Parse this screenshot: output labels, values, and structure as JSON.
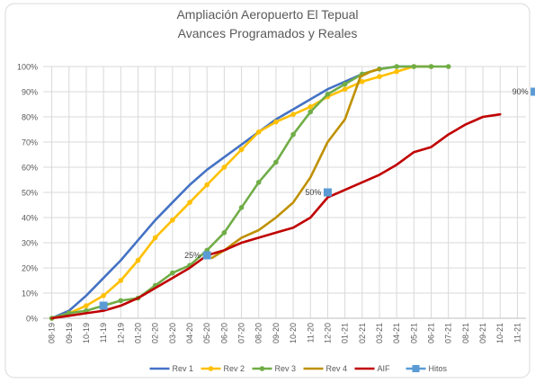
{
  "chart_data": {
    "type": "line",
    "title": "Ampliación Aeropuerto El Tepual",
    "subtitle": "Avances Programados y Reales",
    "xlabel": "",
    "ylabel": "",
    "x_labels": [
      "08-19",
      "09-19",
      "10-19",
      "11-19",
      "12-19",
      "01-20",
      "02-20",
      "03-20",
      "04-20",
      "05-20",
      "06-20",
      "07-20",
      "08-20",
      "09-20",
      "10-20",
      "11-20",
      "12-20",
      "01-21",
      "02-21",
      "03-21",
      "04-21",
      "05-21",
      "06-21",
      "07-21",
      "08-21",
      "09-21",
      "10-21",
      "11-21"
    ],
    "y_ticks": [
      "0%",
      "10%",
      "20%",
      "30%",
      "40%",
      "50%",
      "60%",
      "70%",
      "80%",
      "90%",
      "100%"
    ],
    "ylim": [
      0,
      100
    ],
    "grid": true,
    "legend_position": "bottom",
    "series": [
      {
        "name": "Rev 1",
        "color": "#4472C4",
        "marker": "none",
        "x": [
          0,
          1,
          2,
          3,
          4,
          5,
          6,
          7,
          8,
          9,
          10,
          11,
          12,
          13,
          14,
          15,
          16,
          17,
          18,
          19,
          20,
          21,
          22
        ],
        "y": [
          0,
          3,
          9,
          16,
          23,
          31,
          39,
          46,
          53,
          59,
          64,
          69,
          74,
          79,
          83,
          87,
          91,
          94,
          97,
          99,
          100,
          100,
          100
        ]
      },
      {
        "name": "Rev 2",
        "color": "#FFC000",
        "marker": "circle",
        "x": [
          0,
          1,
          2,
          3,
          4,
          5,
          6,
          7,
          8,
          9,
          10,
          11,
          12,
          13,
          14,
          15,
          16,
          17,
          18,
          19,
          20,
          21,
          22
        ],
        "y": [
          0,
          2,
          5,
          9,
          15,
          23,
          32,
          39,
          46,
          53,
          60,
          67,
          74,
          78,
          81,
          84,
          88,
          91,
          94,
          96,
          98,
          100,
          100
        ]
      },
      {
        "name": "Rev 3",
        "color": "#70AD47",
        "marker": "circle",
        "x": [
          0,
          1,
          2,
          3,
          4,
          5,
          6,
          7,
          8,
          9,
          10,
          11,
          12,
          13,
          14,
          15,
          16,
          17,
          18,
          19,
          20,
          21,
          22,
          23
        ],
        "y": [
          0,
          2,
          3,
          5,
          7,
          8,
          13,
          18,
          21,
          27,
          34,
          44,
          54,
          62,
          73,
          82,
          89,
          93,
          97,
          99,
          100,
          100,
          100,
          100
        ]
      },
      {
        "name": "Rev 4",
        "color": "#BF9000",
        "marker": "none",
        "x": [
          9.3,
          10,
          11,
          12,
          13,
          14,
          15,
          16,
          17,
          17.9,
          18.5,
          19
        ],
        "y": [
          24,
          27,
          32,
          35,
          40,
          46,
          56,
          70,
          79,
          96,
          98,
          99
        ]
      },
      {
        "name": "AIF",
        "color": "#C00000",
        "marker": "none",
        "x": [
          0,
          1,
          2,
          3,
          4,
          5,
          6,
          7,
          8,
          9,
          10,
          11,
          12,
          13,
          14,
          15,
          16,
          17,
          18,
          19,
          20,
          21,
          22,
          23,
          24,
          25,
          26
        ],
        "y": [
          0,
          1,
          2,
          3,
          5,
          8,
          12,
          16,
          20,
          25,
          27,
          30,
          32,
          34,
          36,
          40,
          48,
          51,
          54,
          57,
          61,
          66,
          68,
          73,
          77,
          80,
          81
        ]
      },
      {
        "name": "Hitos",
        "color": "#5B9BD5",
        "marker": "square",
        "line": false,
        "x": [
          3,
          9,
          16,
          28
        ],
        "y": [
          5,
          25,
          50,
          90
        ],
        "labels": [
          "",
          "25%",
          "50%",
          "90%"
        ]
      }
    ]
  }
}
